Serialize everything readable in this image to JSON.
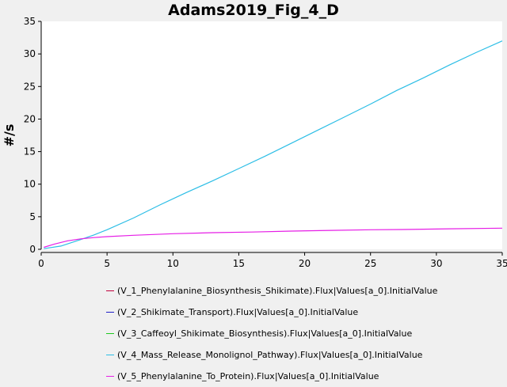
{
  "chart_data": {
    "type": "line",
    "title": "Adams2019_Fig_4_D",
    "xlabel": "",
    "ylabel": "#/s",
    "xlim": [
      0,
      35
    ],
    "ylim": [
      0,
      35
    ],
    "xticks": [
      0,
      5,
      10,
      15,
      20,
      25,
      30,
      35
    ],
    "yticks": [
      0,
      5,
      10,
      15,
      20,
      25,
      30,
      35
    ],
    "grid": false,
    "legend_position": "bottom",
    "series": [
      {
        "name": "(V_1_Phenylalanine_Biosynthesis_Shikimate).Flux|Values[a_0].InitialValue",
        "color": "#c0003c",
        "x": [],
        "y": []
      },
      {
        "name": "(V_2_Shikimate_Transport).Flux|Values[a_0].InitialValue",
        "color": "#1f1fc8",
        "x": [],
        "y": []
      },
      {
        "name": "(V_3_Caffeoyl_Shikimate_Biosynthesis).Flux|Values[a_0].InitialValue",
        "color": "#1ec81e",
        "x": [],
        "y": []
      },
      {
        "name": "(V_4_Mass_Release_Monolignol_Pathway).Flux|Values[a_0].InitialValue",
        "color": "#2dbee6",
        "x": [
          0.2,
          1.5,
          3,
          4,
          5,
          7,
          9,
          11,
          13,
          15,
          17,
          19,
          21,
          23,
          25,
          27,
          29,
          31,
          33,
          35
        ],
        "y": [
          0.1,
          0.5,
          1.5,
          2.2,
          3.0,
          4.8,
          6.8,
          8.7,
          10.5,
          12.4,
          14.3,
          16.3,
          18.3,
          20.3,
          22.3,
          24.4,
          26.3,
          28.3,
          30.2,
          32.0
        ]
      },
      {
        "name": "(V_5_Phenylalanine_To_Protein).Flux|Values[a_0].InitialValue",
        "color": "#e61ee6",
        "x": [
          0.2,
          1,
          2,
          3,
          4,
          5,
          7,
          10,
          13,
          16,
          19,
          22,
          25,
          28,
          31,
          35
        ],
        "y": [
          0.3,
          0.8,
          1.3,
          1.6,
          1.8,
          1.95,
          2.15,
          2.4,
          2.55,
          2.65,
          2.8,
          2.9,
          3.0,
          3.05,
          3.15,
          3.25
        ]
      }
    ]
  }
}
